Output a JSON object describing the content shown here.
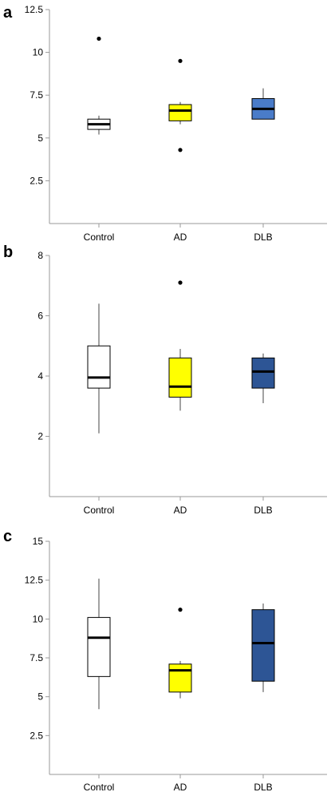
{
  "chart_data": [
    {
      "type": "box",
      "panel": "a",
      "categories": [
        "Control",
        "AD",
        "DLB"
      ],
      "colors": [
        "#ffffff",
        "#ffff00",
        "#4a7cc9"
      ],
      "ylim": [
        0,
        12.5
      ],
      "yticks": [
        2.5,
        5,
        7.5,
        10,
        12.5
      ],
      "ytick_labels": [
        "2.5",
        "5",
        "7.5",
        "10",
        "12.5"
      ],
      "boxes": [
        {
          "name": "Control",
          "whisker_low": 5.2,
          "q1": 5.5,
          "median": 5.8,
          "q3": 6.1,
          "whisker_high": 6.3,
          "outliers": [
            10.8
          ]
        },
        {
          "name": "AD",
          "whisker_low": 5.8,
          "q1": 6.0,
          "median": 6.6,
          "q3": 6.95,
          "whisker_high": 7.1,
          "outliers": [
            9.5,
            4.3
          ]
        },
        {
          "name": "DLB",
          "whisker_low": 6.1,
          "q1": 6.1,
          "median": 6.7,
          "q3": 7.3,
          "whisker_high": 7.9,
          "outliers": []
        }
      ]
    },
    {
      "type": "box",
      "panel": "b",
      "categories": [
        "Control",
        "AD",
        "DLB"
      ],
      "colors": [
        "#ffffff",
        "#ffff00",
        "#2d5595"
      ],
      "ylim": [
        0,
        8
      ],
      "yticks": [
        2,
        4,
        6,
        8
      ],
      "ytick_labels": [
        "2",
        "4",
        "6",
        "8"
      ],
      "boxes": [
        {
          "name": "Control",
          "whisker_low": 2.1,
          "q1": 3.6,
          "median": 3.95,
          "q3": 5.0,
          "whisker_high": 6.4,
          "outliers": []
        },
        {
          "name": "AD",
          "whisker_low": 2.85,
          "q1": 3.3,
          "median": 3.65,
          "q3": 4.6,
          "whisker_high": 4.9,
          "outliers": [
            7.1
          ]
        },
        {
          "name": "DLB",
          "whisker_low": 3.1,
          "q1": 3.6,
          "median": 4.15,
          "q3": 4.6,
          "whisker_high": 4.75,
          "outliers": []
        }
      ]
    },
    {
      "type": "box",
      "panel": "c",
      "categories": [
        "Control",
        "AD",
        "DLB"
      ],
      "colors": [
        "#ffffff",
        "#ffff00",
        "#2d5595"
      ],
      "ylim": [
        0,
        15
      ],
      "yticks": [
        2.5,
        5,
        7.5,
        10,
        12.5,
        15
      ],
      "ytick_labels": [
        "2.5",
        "5",
        "7.5",
        "10",
        "12.5",
        "15"
      ],
      "boxes": [
        {
          "name": "Control",
          "whisker_low": 4.2,
          "q1": 6.3,
          "median": 8.8,
          "q3": 10.1,
          "whisker_high": 12.6,
          "outliers": []
        },
        {
          "name": "AD",
          "whisker_low": 4.9,
          "q1": 5.3,
          "median": 6.7,
          "q3": 7.1,
          "whisker_high": 7.3,
          "outliers": [
            10.6
          ]
        },
        {
          "name": "DLB",
          "whisker_low": 5.3,
          "q1": 6.0,
          "median": 8.45,
          "q3": 10.6,
          "whisker_high": 11.0,
          "outliers": []
        }
      ]
    }
  ]
}
